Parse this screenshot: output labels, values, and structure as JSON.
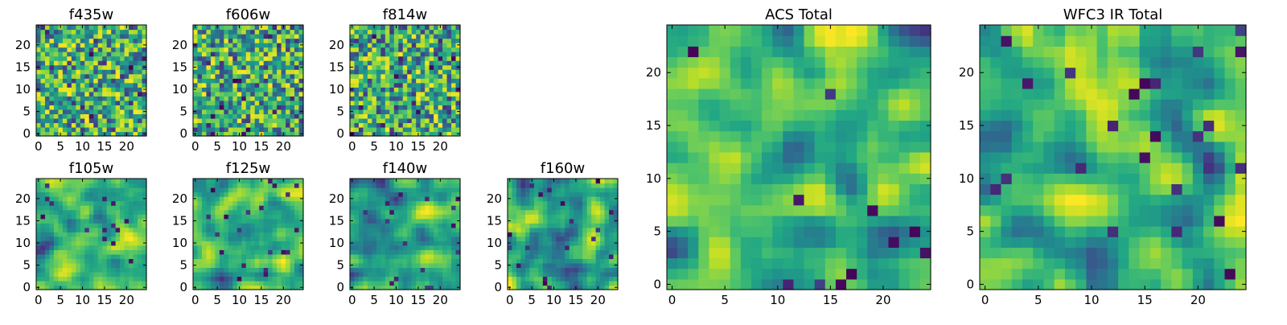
{
  "chart_data": [
    {
      "type": "heatmap",
      "title": "f435w",
      "grid_size": [
        25,
        25
      ],
      "colormap": "viridis",
      "xticks": [
        0,
        5,
        10,
        15,
        20
      ],
      "yticks": [
        0,
        5,
        10,
        15,
        20
      ],
      "xlim": [
        -0.5,
        24.5
      ],
      "ylim": [
        -0.5,
        24.5
      ],
      "values_seed": 435
    },
    {
      "type": "heatmap",
      "title": "f606w",
      "grid_size": [
        25,
        25
      ],
      "colormap": "viridis",
      "xticks": [
        0,
        5,
        10,
        15,
        20
      ],
      "yticks": [
        0,
        5,
        10,
        15,
        20
      ],
      "xlim": [
        -0.5,
        24.5
      ],
      "ylim": [
        -0.5,
        24.5
      ],
      "values_seed": 606
    },
    {
      "type": "heatmap",
      "title": "f814w",
      "grid_size": [
        25,
        25
      ],
      "colormap": "viridis",
      "xticks": [
        0,
        5,
        10,
        15,
        20
      ],
      "yticks": [
        0,
        5,
        10,
        15,
        20
      ],
      "xlim": [
        -0.5,
        24.5
      ],
      "ylim": [
        -0.5,
        24.5
      ],
      "values_seed": 814
    },
    {
      "type": "heatmap",
      "title": "f105w",
      "grid_size": [
        25,
        25
      ],
      "colormap": "viridis",
      "xticks": [
        0,
        5,
        10,
        15,
        20
      ],
      "yticks": [
        0,
        5,
        10,
        15,
        20
      ],
      "xlim": [
        -0.5,
        24.5
      ],
      "ylim": [
        -0.5,
        24.5
      ],
      "values_seed": 105
    },
    {
      "type": "heatmap",
      "title": "f125w",
      "grid_size": [
        25,
        25
      ],
      "colormap": "viridis",
      "xticks": [
        0,
        5,
        10,
        15,
        20
      ],
      "yticks": [
        0,
        5,
        10,
        15,
        20
      ],
      "xlim": [
        -0.5,
        24.5
      ],
      "ylim": [
        -0.5,
        24.5
      ],
      "values_seed": 125
    },
    {
      "type": "heatmap",
      "title": "f140w",
      "grid_size": [
        25,
        25
      ],
      "colormap": "viridis",
      "xticks": [
        0,
        5,
        10,
        15,
        20
      ],
      "yticks": [
        0,
        5,
        10,
        15,
        20
      ],
      "xlim": [
        -0.5,
        24.5
      ],
      "ylim": [
        -0.5,
        24.5
      ],
      "values_seed": 140
    },
    {
      "type": "heatmap",
      "title": "f160w",
      "grid_size": [
        25,
        25
      ],
      "colormap": "viridis",
      "xticks": [
        0,
        5,
        10,
        15,
        20
      ],
      "yticks": [
        0,
        5,
        10,
        15,
        20
      ],
      "xlim": [
        -0.5,
        24.5
      ],
      "ylim": [
        -0.5,
        24.5
      ],
      "values_seed": 160
    },
    {
      "type": "heatmap",
      "title": "ACS Total",
      "grid_size": [
        25,
        25
      ],
      "colormap": "viridis",
      "xticks": [
        0,
        5,
        10,
        15,
        20
      ],
      "yticks": [
        0,
        5,
        10,
        15,
        20
      ],
      "xlim": [
        -0.5,
        24.5
      ],
      "ylim": [
        -0.5,
        24.5
      ],
      "values_seed": 1000
    },
    {
      "type": "heatmap",
      "title": "WFC3 IR Total",
      "grid_size": [
        25,
        25
      ],
      "colormap": "viridis",
      "xticks": [
        0,
        5,
        10,
        15,
        20
      ],
      "yticks": [
        0,
        5,
        10,
        15,
        20
      ],
      "xlim": [
        -0.5,
        24.5
      ],
      "ylim": [
        -0.5,
        24.5
      ],
      "values_seed": 2000
    }
  ]
}
